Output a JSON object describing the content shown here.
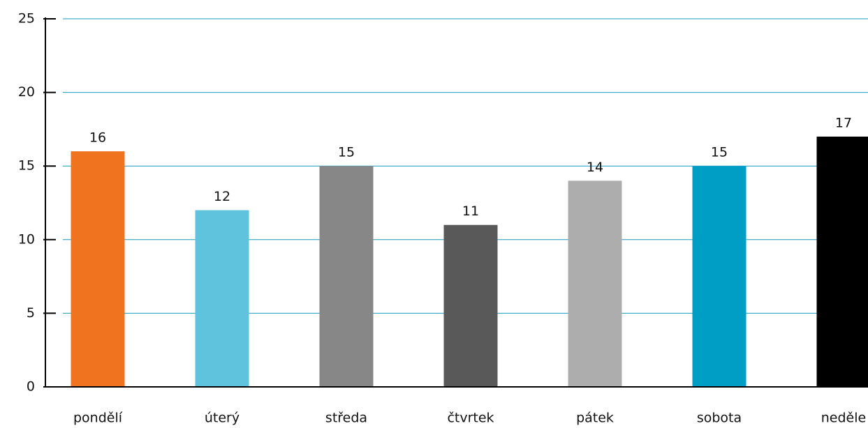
{
  "chart_data": {
    "type": "bar",
    "categories": [
      "pondělí",
      "úterý",
      "středa",
      "čtvrtek",
      "pátek",
      "sobota",
      "neděle"
    ],
    "values": [
      16,
      12,
      15,
      11,
      14,
      15,
      17
    ],
    "colors": [
      "#f07320",
      "#5fc3dd",
      "#878787",
      "#595959",
      "#adadad",
      "#009dc4",
      "#000000"
    ],
    "ylim": [
      0,
      25
    ],
    "yticks": [
      0,
      5,
      10,
      15,
      20,
      25
    ],
    "grid": true,
    "grid_color": "#1a9bc0"
  }
}
